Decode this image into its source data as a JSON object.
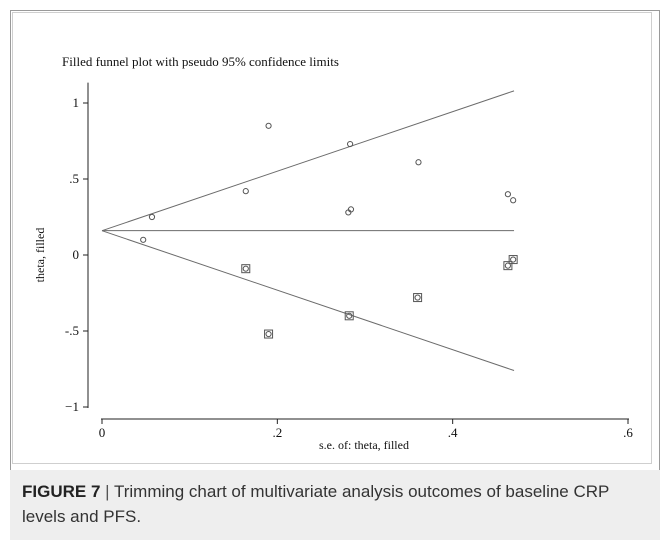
{
  "caption": {
    "label": "FIGURE 7",
    "separator": "|",
    "text": "Trimming chart of multivariate analysis outcomes of baseline CRP levels and PFS."
  },
  "chart_data": {
    "type": "scatter",
    "title": "Filled funnel plot with pseudo 95% confidence limits",
    "xlabel": "s.e. of: theta, filled",
    "ylabel": "theta, filled",
    "xlim": [
      0,
      0.6
    ],
    "ylim": [
      -1.1,
      1.2
    ],
    "x_ticks": [
      0,
      0.2,
      0.4,
      0.6
    ],
    "x_tick_labels": [
      "0",
      ".2",
      ".4",
      ".6"
    ],
    "y_ticks": [
      -1,
      -0.5,
      0,
      0.5,
      1
    ],
    "y_tick_labels": [
      "−1",
      "-.5",
      "0",
      ".5",
      "1"
    ],
    "grid": false,
    "pooled_estimate": 0.16,
    "funnel_max_se": 0.47,
    "funnel_upper_end": 1.08,
    "funnel_lower_end": -0.76,
    "series": [
      {
        "marker": "circle",
        "points": [
          [
            0.047,
            0.1
          ],
          [
            0.057,
            0.25
          ],
          [
            0.164,
            0.42
          ],
          [
            0.19,
            0.85
          ],
          [
            0.281,
            0.28
          ],
          [
            0.284,
            0.3
          ],
          [
            0.283,
            0.73
          ],
          [
            0.361,
            0.61
          ],
          [
            0.463,
            0.4
          ],
          [
            0.469,
            0.36
          ]
        ]
      },
      {
        "marker": "boxed-circle",
        "points": [
          [
            0.164,
            -0.09
          ],
          [
            0.19,
            -0.52
          ],
          [
            0.282,
            -0.4
          ],
          [
            0.36,
            -0.28
          ],
          [
            0.463,
            -0.07
          ],
          [
            0.469,
            -0.03
          ]
        ]
      }
    ],
    "colors": {
      "axis": "#222222",
      "line": "#6b6b6b",
      "marker": "#555555"
    }
  }
}
